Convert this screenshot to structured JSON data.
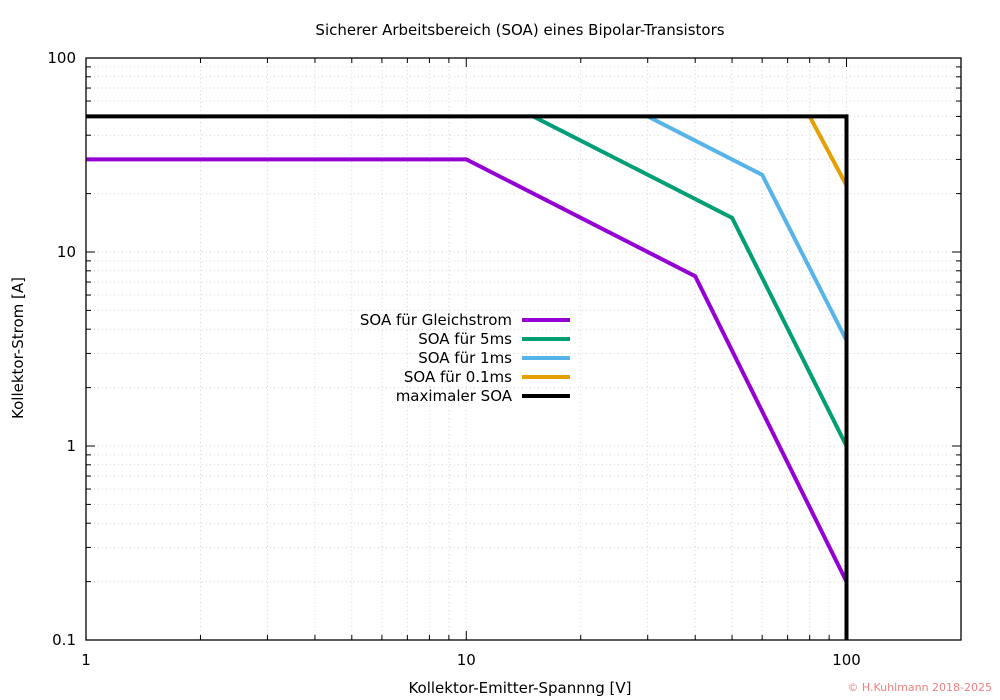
{
  "credit": "© H.Kuhlmann 2018-2025",
  "chart_data": {
    "type": "line",
    "title": "Sicherer Arbeitsbereich (SOA) eines Bipolar-Transistors",
    "xlabel": "Kollektor-Emitter-Spannng [V]",
    "ylabel": "Kollektor-Strom [A]",
    "xscale": "log",
    "yscale": "log",
    "xlim": [
      1,
      200
    ],
    "ylim": [
      0.1,
      100
    ],
    "xticks": [
      {
        "value": 1,
        "label": "1"
      },
      {
        "value": 10,
        "label": "10"
      },
      {
        "value": 100,
        "label": "100"
      }
    ],
    "yticks": [
      {
        "value": 0.1,
        "label": "0.1"
      },
      {
        "value": 1,
        "label": "1"
      },
      {
        "value": 10,
        "label": "10"
      },
      {
        "value": 100,
        "label": "100"
      }
    ],
    "grid": true,
    "legend_position": "center",
    "series": [
      {
        "name": "SOA für Gleichstrom",
        "color": "#9400d3",
        "points": [
          [
            1,
            30
          ],
          [
            10,
            30
          ],
          [
            40,
            7.5
          ],
          [
            100,
            0.2
          ]
        ]
      },
      {
        "name": "SOA für 5ms",
        "color": "#009e73",
        "points": [
          [
            15,
            50
          ],
          [
            50,
            15
          ],
          [
            100,
            1.0
          ]
        ]
      },
      {
        "name": "SOA für 1ms",
        "color": "#56b4e9",
        "points": [
          [
            30,
            50
          ],
          [
            60,
            25
          ],
          [
            100,
            3.5
          ]
        ]
      },
      {
        "name": "SOA für 0.1ms",
        "color": "#e69f00",
        "points": [
          [
            80,
            50
          ],
          [
            100,
            22
          ]
        ]
      },
      {
        "name": "maximaler SOA",
        "color": "#000000",
        "points": [
          [
            1,
            50
          ],
          [
            100,
            50
          ],
          [
            100,
            0.1
          ]
        ]
      }
    ]
  }
}
